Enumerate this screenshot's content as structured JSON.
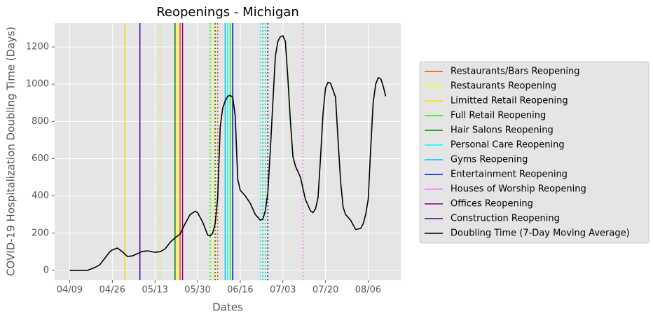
{
  "chart_data": {
    "type": "line",
    "title": "Reopenings - Michigan",
    "xlabel": "Dates",
    "ylabel": "COVID-19 Hospitalization Doubling Time (Days)",
    "xlim": [
      "04/03",
      "08/19"
    ],
    "xticks": [
      "04/09",
      "04/26",
      "05/13",
      "05/30",
      "06/16",
      "07/03",
      "07/20",
      "08/06"
    ],
    "ylim": [
      -53,
      1328
    ],
    "yticks": [
      0,
      200,
      400,
      600,
      800,
      1000,
      1200
    ],
    "grid": true,
    "reopenings": [
      {
        "name": "Restaurants/Bars Reopening",
        "color": "#ff4500",
        "lines": [
          {
            "x": "05/23",
            "style": "solid"
          },
          {
            "x": "06/07",
            "style": "dotted"
          }
        ]
      },
      {
        "name": "Restaurants Reopening",
        "color": "#ffff00",
        "lines": [
          {
            "x": "05/22",
            "style": "solid"
          },
          {
            "x": "06/05",
            "style": "dotted"
          }
        ]
      },
      {
        "name": "Limitted Retail Reopening",
        "color": "#ffd700",
        "lines": [
          {
            "x": "05/01",
            "style": "solid"
          },
          {
            "x": "05/15",
            "style": "dotted"
          }
        ]
      },
      {
        "name": "Full Retail Reopening",
        "color": "#00ff00",
        "lines": [
          {
            "x": "06/12",
            "style": "solid"
          },
          {
            "x": "06/04",
            "style": "dotted"
          },
          {
            "x": "06/26",
            "style": "dotted"
          }
        ]
      },
      {
        "name": "Hair Salons Reopening",
        "color": "#008000",
        "lines": [
          {
            "x": "05/21",
            "style": "solid"
          },
          {
            "x": "06/06",
            "style": "dotted"
          }
        ]
      },
      {
        "name": "Personal Care Reopening",
        "color": "#00ffff",
        "lines": [
          {
            "x": "06/11",
            "style": "solid"
          },
          {
            "x": "06/24",
            "style": "dotted"
          }
        ]
      },
      {
        "name": "Gyms Reopening",
        "color": "#00bfff",
        "lines": [
          {
            "x": "06/10",
            "style": "solid"
          },
          {
            "x": "06/25",
            "style": "dotted"
          }
        ]
      },
      {
        "name": "Entertainment Reopening",
        "color": "#0000ff",
        "lines": [
          {
            "x": "06/13",
            "style": "solid"
          },
          {
            "x": "06/27",
            "style": "dotted"
          }
        ]
      },
      {
        "name": "Houses of Worship Reopening",
        "color": "#ee82ee",
        "lines": [
          {
            "x": "07/11",
            "style": "dotted"
          }
        ]
      },
      {
        "name": "Offices Reopening",
        "color": "#800080",
        "lines": [
          {
            "x": "05/24",
            "style": "solid"
          }
        ]
      },
      {
        "name": "Construction Reopening",
        "color": "#4b0082",
        "lines": [
          {
            "x": "05/07",
            "style": "solid"
          }
        ]
      }
    ],
    "x": [
      "04/09",
      "04/16",
      "04/19",
      "04/21",
      "04/23",
      "04/25",
      "04/26",
      "04/28",
      "04/30",
      "05/02",
      "05/04",
      "05/06",
      "05/08",
      "05/10",
      "05/13",
      "05/15",
      "05/17",
      "05/19",
      "05/21",
      "05/23",
      "05/25",
      "05/27",
      "05/29",
      "05/30",
      "06/01",
      "06/03",
      "06/04",
      "06/05",
      "06/06",
      "06/07",
      "06/08",
      "06/09",
      "06/10",
      "06/11",
      "06/12",
      "06/13",
      "06/14",
      "06/15",
      "06/16",
      "06/18",
      "06/20",
      "06/22",
      "06/24",
      "06/25",
      "06/26",
      "06/27",
      "06/28",
      "06/29",
      "06/30",
      "07/01",
      "07/02",
      "07/03",
      "07/04",
      "07/05",
      "07/06",
      "07/07",
      "07/08",
      "07/10",
      "07/12",
      "07/14",
      "07/15",
      "07/16",
      "07/17",
      "07/18",
      "07/19",
      "07/20",
      "07/21",
      "07/22",
      "07/24",
      "07/25",
      "07/26",
      "07/27",
      "07/28",
      "07/30",
      "08/01",
      "08/03",
      "08/04",
      "08/05",
      "08/06",
      "08/07",
      "08/08",
      "08/09",
      "08/10",
      "08/11",
      "08/12",
      "08/13"
    ],
    "series": [
      {
        "name": "Doubling Time (7-Day Moving Average)",
        "color": "#000000",
        "values": [
          0,
          0,
          15,
          30,
          65,
          100,
          110,
          120,
          100,
          75,
          78,
          90,
          102,
          105,
          97,
          100,
          115,
          150,
          175,
          195,
          250,
          300,
          318,
          310,
          260,
          190,
          185,
          200,
          250,
          390,
          770,
          870,
          910,
          935,
          940,
          930,
          830,
          490,
          430,
          400,
          360,
          300,
          270,
          275,
          320,
          420,
          650,
          900,
          1150,
          1230,
          1255,
          1260,
          1230,
          1030,
          800,
          610,
          560,
          500,
          380,
          320,
          310,
          330,
          390,
          600,
          840,
          980,
          1010,
          1005,
          930,
          700,
          480,
          340,
          300,
          270,
          220,
          225,
          250,
          300,
          380,
          650,
          900,
          1000,
          1035,
          1030,
          990,
          935
        ]
      }
    ]
  }
}
